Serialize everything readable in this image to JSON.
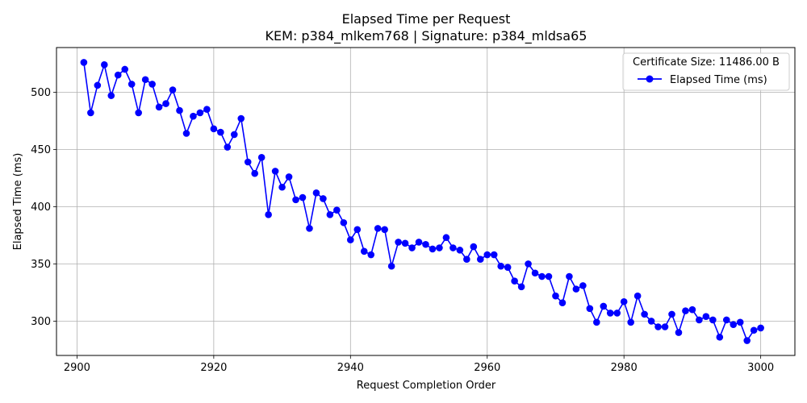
{
  "chart_data": {
    "type": "line",
    "title": "Elapsed Time per Request",
    "subtitle": "KEM: p384_mlkem768 | Signature: p384_mldsa65",
    "xlabel": "Request Completion Order",
    "ylabel": "Elapsed Time (ms)",
    "xlim": [
      2897,
      3005
    ],
    "ylim": [
      270,
      539
    ],
    "xticks": [
      2900,
      2920,
      2940,
      2960,
      2980,
      3000
    ],
    "yticks": [
      300,
      350,
      400,
      450,
      500
    ],
    "grid": true,
    "legend": {
      "title": "Certificate Size: 11486.00 B",
      "placement": "top-right"
    },
    "series": [
      {
        "name": "Elapsed Time (ms)",
        "color": "#0000ff",
        "marker": "circle",
        "x": [
          2901,
          2902,
          2903,
          2904,
          2905,
          2906,
          2907,
          2908,
          2909,
          2910,
          2911,
          2912,
          2913,
          2914,
          2915,
          2916,
          2917,
          2918,
          2919,
          2920,
          2921,
          2922,
          2923,
          2924,
          2925,
          2926,
          2927,
          2928,
          2929,
          2930,
          2931,
          2932,
          2933,
          2934,
          2935,
          2936,
          2937,
          2938,
          2939,
          2940,
          2941,
          2942,
          2943,
          2944,
          2945,
          2946,
          2947,
          2948,
          2949,
          2950,
          2951,
          2952,
          2953,
          2954,
          2955,
          2956,
          2957,
          2958,
          2959,
          2960,
          2961,
          2962,
          2963,
          2964,
          2965,
          2966,
          2967,
          2968,
          2969,
          2970,
          2971,
          2972,
          2973,
          2974,
          2975,
          2976,
          2977,
          2978,
          2979,
          2980,
          2981,
          2982,
          2983,
          2984,
          2985,
          2986,
          2987,
          2988,
          2989,
          2990,
          2991,
          2992,
          2993,
          2994,
          2995,
          2996,
          2997,
          2998,
          2999,
          3000
        ],
        "values": [
          526,
          482,
          506,
          524,
          497,
          515,
          520,
          507,
          482,
          511,
          507,
          487,
          490,
          502,
          484,
          464,
          479,
          482,
          485,
          468,
          465,
          452,
          463,
          477,
          439,
          429,
          443,
          393,
          431,
          417,
          426,
          406,
          408,
          381,
          412,
          407,
          393,
          397,
          386,
          371,
          380,
          361,
          358,
          381,
          380,
          348,
          369,
          368,
          364,
          369,
          367,
          363,
          364,
          373,
          364,
          362,
          354,
          365,
          354,
          358,
          358,
          348,
          347,
          335,
          330,
          350,
          342,
          339,
          339,
          322,
          316,
          339,
          328,
          331,
          311,
          299,
          313,
          307,
          307,
          317,
          299,
          322,
          306,
          300,
          295,
          295,
          306,
          290,
          309,
          310,
          301,
          304,
          301,
          286,
          301,
          297,
          299,
          283,
          292,
          294
        ]
      }
    ]
  }
}
